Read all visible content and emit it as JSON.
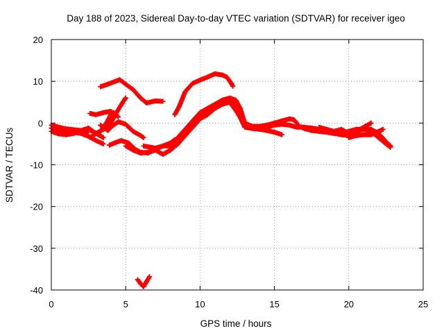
{
  "chart_data": {
    "type": "scatter",
    "title": "Day 188 of 2023, Sidereal Day-to-day VTEC variation (SDTVAR) for receiver igeo",
    "xlabel": "GPS time / hours",
    "ylabel": "SDTVAR / TECUs",
    "xlim": [
      0,
      25
    ],
    "ylim": [
      -40,
      20
    ],
    "x_ticks": [
      0,
      5,
      10,
      15,
      20,
      25
    ],
    "y_ticks": [
      -40,
      -30,
      -20,
      -10,
      0,
      10,
      20
    ],
    "x_tick_labels": [
      "0",
      "5",
      "10",
      "15",
      "20",
      "25"
    ],
    "y_tick_labels": [
      "-40",
      "-30",
      "-20",
      "-10",
      "0",
      "10",
      "20"
    ],
    "grid": true,
    "marker": "+",
    "color": "#ff0000",
    "series": [
      {
        "name": "trace-1",
        "points": [
          [
            0,
            -2.0
          ],
          [
            0.5,
            -2.6
          ],
          [
            1,
            -2.8
          ],
          [
            1.5,
            -2.5
          ],
          [
            2,
            -1.8
          ],
          [
            2.5,
            -1.2
          ],
          [
            3,
            -2.5
          ],
          [
            3.5,
            -3.5
          ]
        ]
      },
      {
        "name": "trace-2",
        "points": [
          [
            0,
            -1.2
          ],
          [
            0.4,
            -1.8
          ],
          [
            1,
            -2.0
          ],
          [
            1.5,
            -2.2
          ],
          [
            2,
            -2.5
          ],
          [
            2.5,
            -3.2
          ],
          [
            3,
            -4.2
          ],
          [
            3.5,
            -5.0
          ]
        ]
      },
      {
        "name": "trace-3",
        "points": [
          [
            0,
            -0.5
          ],
          [
            0.5,
            -1.0
          ],
          [
            1,
            -1.4
          ],
          [
            1.5,
            -1.6
          ],
          [
            2,
            -1.8
          ],
          [
            2.5,
            -2.0
          ]
        ]
      },
      {
        "name": "trace-4",
        "points": [
          [
            2.6,
            -3.5
          ],
          [
            3,
            -2.5
          ],
          [
            3.5,
            -1.5
          ],
          [
            4,
            0
          ],
          [
            4.3,
            2
          ],
          [
            4.6,
            3.8
          ],
          [
            4.9,
            5.5
          ],
          [
            5,
            6
          ]
        ]
      },
      {
        "name": "trace-5",
        "points": [
          [
            2.5,
            -1.5
          ],
          [
            3,
            -2.5
          ],
          [
            3.3,
            -2.0
          ],
          [
            3.7,
            0
          ],
          [
            4,
            2
          ],
          [
            4.2,
            2.5
          ]
        ]
      },
      {
        "name": "trace-6",
        "points": [
          [
            2.6,
            2.3
          ],
          [
            3,
            2.0
          ],
          [
            3.5,
            2.5
          ],
          [
            4,
            2.8
          ],
          [
            4.5,
            1.5
          ]
        ]
      },
      {
        "name": "trace-7",
        "points": [
          [
            3.3,
            -0.5
          ],
          [
            3.8,
            -1.8
          ],
          [
            4,
            -1.0
          ],
          [
            4.5,
            0.3
          ],
          [
            5,
            -0.3
          ],
          [
            5.5,
            -2.0
          ],
          [
            6,
            -3.0
          ],
          [
            6.2,
            -3.5
          ]
        ]
      },
      {
        "name": "trace-8",
        "points": [
          [
            3.3,
            8.7
          ],
          [
            3.8,
            9.3
          ],
          [
            4.3,
            10.0
          ],
          [
            4.6,
            10.4
          ],
          [
            5,
            9.3
          ],
          [
            5.5,
            8.0
          ],
          [
            6,
            6.0
          ],
          [
            6.4,
            4.8
          ],
          [
            7,
            5.3
          ],
          [
            7.5,
            5.2
          ]
        ]
      },
      {
        "name": "trace-9",
        "points": [
          [
            3.9,
            -5.3
          ],
          [
            4.3,
            -4.7
          ],
          [
            4.7,
            -4.2
          ],
          [
            5.2,
            -4.8
          ],
          [
            5.6,
            -6.2
          ],
          [
            6,
            -7.0
          ],
          [
            6.5,
            -7.2
          ],
          [
            7,
            -6.3
          ],
          [
            7.5,
            -5.5
          ],
          [
            8,
            -4.8
          ],
          [
            8.3,
            -4.0
          ]
        ]
      },
      {
        "name": "trace-10",
        "points": [
          [
            5,
            -5.5
          ],
          [
            5.5,
            -6.5
          ],
          [
            6,
            -7.2
          ],
          [
            6.5,
            -7.0
          ],
          [
            7,
            -6.5
          ],
          [
            7.5,
            -7.5
          ],
          [
            8,
            -6.5
          ],
          [
            8.5,
            -5.0
          ],
          [
            9,
            -2.5
          ],
          [
            9.5,
            -0.5
          ],
          [
            10,
            1.5
          ],
          [
            10.5,
            3.0
          ],
          [
            11,
            4.0
          ],
          [
            11.5,
            5.0
          ],
          [
            12,
            5.5
          ],
          [
            12.3,
            5.0
          ],
          [
            12.5,
            3.0
          ],
          [
            13,
            -1.0
          ],
          [
            13.5,
            -1.3
          ],
          [
            14,
            -1.5
          ],
          [
            14.5,
            -1.8
          ],
          [
            15,
            -2.2
          ],
          [
            15.5,
            -2.8
          ]
        ]
      },
      {
        "name": "trace-11",
        "points": [
          [
            6.2,
            -5.5
          ],
          [
            7,
            -6.0
          ],
          [
            7.5,
            -5.5
          ],
          [
            8,
            -5.5
          ],
          [
            8.5,
            -3.5
          ],
          [
            9,
            -1.5
          ],
          [
            9.5,
            0.5
          ],
          [
            10,
            2.5
          ],
          [
            10.5,
            3.5
          ],
          [
            11,
            4.5
          ],
          [
            11.5,
            5.5
          ],
          [
            12,
            6.0
          ],
          [
            12.4,
            5.5
          ],
          [
            12.7,
            3.5
          ],
          [
            13,
            0
          ],
          [
            13.5,
            -0.8
          ],
          [
            14,
            -0.8
          ],
          [
            14.5,
            -0.5
          ],
          [
            15,
            0
          ],
          [
            15.5,
            0.5
          ],
          [
            16,
            1
          ],
          [
            16.3,
            0.8
          ],
          [
            16.5,
            0
          ]
        ]
      },
      {
        "name": "trace-12",
        "points": [
          [
            7.5,
            -7.5
          ],
          [
            8,
            -6.5
          ],
          [
            8.5,
            -5.0
          ],
          [
            9,
            -3.0
          ],
          [
            9.5,
            -1.0
          ],
          [
            10,
            1.0
          ],
          [
            10.5,
            2.0
          ],
          [
            11,
            3.5
          ],
          [
            11.5,
            4.5
          ],
          [
            12,
            5.0
          ],
          [
            12.5,
            2.5
          ],
          [
            13,
            -0.5
          ],
          [
            13.5,
            -1.0
          ],
          [
            14,
            -1.2
          ]
        ]
      },
      {
        "name": "trace-13",
        "points": [
          [
            8.3,
            2.0
          ],
          [
            8.6,
            4.0
          ],
          [
            9,
            7.5
          ],
          [
            9.5,
            9.5
          ],
          [
            10,
            10.3
          ],
          [
            10.5,
            11.0
          ],
          [
            11,
            11.8
          ],
          [
            11.5,
            11.5
          ],
          [
            11.8,
            11.0
          ],
          [
            12.1,
            9.5
          ],
          [
            12.2,
            8.8
          ]
        ]
      },
      {
        "name": "trace-14",
        "points": [
          [
            14.5,
            -1.0
          ],
          [
            15,
            -0.5
          ],
          [
            15.5,
            -0.3
          ],
          [
            16,
            -0.5
          ],
          [
            16.5,
            -1.0
          ],
          [
            17,
            -1.0
          ],
          [
            17.5,
            -1.2
          ],
          [
            18,
            -1.5
          ],
          [
            18.5,
            -1.6
          ],
          [
            19,
            -2.0
          ],
          [
            19.5,
            -2.5
          ],
          [
            20,
            -2.0
          ],
          [
            20.5,
            -1.5
          ],
          [
            21,
            -1.5
          ],
          [
            21.5,
            -1.5
          ],
          [
            22,
            -2.5
          ],
          [
            22.5,
            -4.5
          ],
          [
            22.8,
            -5.5
          ]
        ]
      },
      {
        "name": "trace-15",
        "points": [
          [
            16.5,
            -0.5
          ],
          [
            17,
            -1.3
          ],
          [
            17.5,
            -1.8
          ],
          [
            18,
            -2.0
          ],
          [
            18.5,
            -2.2
          ],
          [
            19,
            -2.5
          ],
          [
            19.5,
            -2.8
          ],
          [
            20,
            -3.0
          ],
          [
            20.5,
            -2.0
          ],
          [
            21,
            -1.5
          ],
          [
            21.5,
            -2.0
          ],
          [
            22,
            -3.5
          ],
          [
            22.5,
            -5.0
          ],
          [
            22.8,
            -5.8
          ]
        ]
      },
      {
        "name": "trace-16",
        "points": [
          [
            18,
            -1.0
          ],
          [
            18.5,
            -1.5
          ],
          [
            19,
            -2.0
          ],
          [
            19.5,
            -1.5
          ],
          [
            20,
            -2.5
          ],
          [
            20.5,
            -2.0
          ],
          [
            21,
            -1.0
          ],
          [
            21.5,
            0
          ]
        ]
      },
      {
        "name": "trace-17",
        "points": [
          [
            20,
            -3.5
          ],
          [
            20.5,
            -3.0
          ],
          [
            21,
            -2.8
          ],
          [
            21.5,
            -2.8
          ],
          [
            22,
            -2.0
          ],
          [
            22.3,
            -1.5
          ]
        ]
      },
      {
        "name": "trace-18",
        "points": [
          [
            5.8,
            -37.5
          ],
          [
            6.0,
            -38.5
          ],
          [
            6.2,
            -39.2
          ],
          [
            6.4,
            -38.0
          ],
          [
            6.6,
            -36.8
          ]
        ]
      }
    ]
  }
}
